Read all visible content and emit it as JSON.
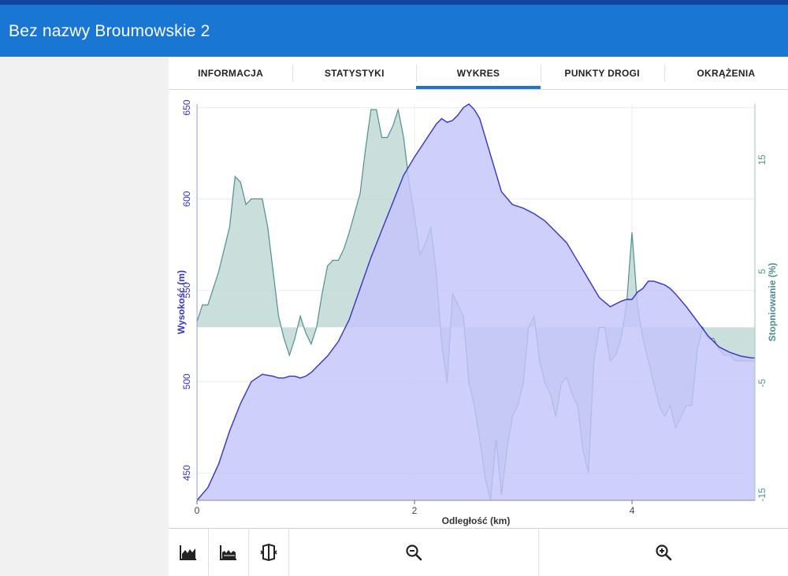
{
  "app": {
    "title": "Bez nazwy Broumowskie 2"
  },
  "tabs": [
    {
      "label": "INFORMACJA",
      "active": false
    },
    {
      "label": "STATYSTYKI",
      "active": false
    },
    {
      "label": "WYKRES",
      "active": true
    },
    {
      "label": "PUNKTY DROGI",
      "active": false
    },
    {
      "label": "OKRĄŻENIA",
      "active": false
    }
  ],
  "toolbar": {
    "icons": [
      "elevation-chart-icon",
      "gradient-chart-icon",
      "map-book-icon",
      "zoom-out-icon",
      "zoom-in-icon"
    ]
  },
  "colors": {
    "elevation": "#3333cc",
    "elevation_fill": "#c5c5fa",
    "grade": "#4f8f8f",
    "grade_fill": "#b8d4d0",
    "accent": "#1976d2"
  },
  "chart_data": {
    "type": "area",
    "xlabel": "Odległość (km)",
    "ylabel_left": "Wysokość (m)",
    "ylabel_right": "Stopniowanie (%)",
    "xlim": [
      0,
      5.13
    ],
    "ylim_left": [
      435,
      652
    ],
    "ylim_right": [
      -15.5,
      20
    ],
    "x_ticks": [
      0,
      2,
      4
    ],
    "y_ticks_left": [
      450,
      500,
      550,
      600,
      650
    ],
    "y_ticks_right": [
      -15,
      -5,
      5,
      15
    ],
    "grid": true,
    "series": [
      {
        "name": "Wysokość (m)",
        "axis": "left",
        "x": [
          0,
          0.1,
          0.2,
          0.3,
          0.4,
          0.5,
          0.6,
          0.7,
          0.75,
          0.8,
          0.85,
          0.9,
          0.95,
          1.0,
          1.05,
          1.1,
          1.15,
          1.2,
          1.3,
          1.4,
          1.5,
          1.6,
          1.7,
          1.8,
          1.9,
          2.0,
          2.1,
          2.2,
          2.25,
          2.3,
          2.35,
          2.4,
          2.45,
          2.5,
          2.55,
          2.6,
          2.7,
          2.8,
          2.9,
          3.0,
          3.1,
          3.2,
          3.3,
          3.4,
          3.5,
          3.6,
          3.7,
          3.8,
          3.9,
          3.95,
          4.0,
          4.05,
          4.1,
          4.15,
          4.2,
          4.25,
          4.3,
          4.35,
          4.4,
          4.5,
          4.6,
          4.7,
          4.8,
          4.9,
          5.0,
          5.1,
          5.13
        ],
        "values": [
          435,
          442,
          455,
          473,
          488,
          500,
          504,
          503,
          502,
          502,
          503,
          503,
          502,
          503,
          505,
          508,
          511,
          514,
          522,
          534,
          551,
          568,
          583,
          598,
          613,
          623,
          632,
          641,
          644,
          642,
          643,
          646,
          650,
          652,
          649,
          644,
          624,
          604,
          597,
          595,
          592,
          588,
          582,
          576,
          566,
          556,
          546,
          541,
          544,
          545,
          545,
          549,
          551,
          555,
          555,
          554,
          553,
          551,
          548,
          541,
          533,
          525,
          519,
          516,
          514,
          513,
          513
        ]
      },
      {
        "name": "Stopniowanie (%)",
        "axis": "right",
        "x": [
          0,
          0.05,
          0.1,
          0.2,
          0.3,
          0.35,
          0.4,
          0.45,
          0.5,
          0.55,
          0.6,
          0.65,
          0.7,
          0.75,
          0.8,
          0.85,
          0.9,
          0.95,
          1.0,
          1.05,
          1.1,
          1.15,
          1.2,
          1.25,
          1.3,
          1.35,
          1.4,
          1.5,
          1.55,
          1.6,
          1.65,
          1.7,
          1.75,
          1.8,
          1.85,
          1.9,
          1.95,
          2.0,
          2.05,
          2.1,
          2.15,
          2.2,
          2.25,
          2.3,
          2.35,
          2.4,
          2.45,
          2.5,
          2.55,
          2.6,
          2.65,
          2.7,
          2.75,
          2.8,
          2.85,
          2.9,
          2.95,
          3.0,
          3.05,
          3.1,
          3.15,
          3.2,
          3.25,
          3.3,
          3.35,
          3.4,
          3.45,
          3.5,
          3.55,
          3.6,
          3.65,
          3.7,
          3.75,
          3.8,
          3.85,
          3.9,
          3.95,
          4.0,
          4.05,
          4.1,
          4.15,
          4.2,
          4.25,
          4.3,
          4.35,
          4.4,
          4.45,
          4.5,
          4.55,
          4.6,
          4.65,
          4.7,
          4.75,
          4.8,
          4.85,
          4.9,
          4.95,
          5.0,
          5.05,
          5.1,
          5.13
        ],
        "values": [
          0.5,
          2,
          2,
          5,
          9,
          13.5,
          13,
          11,
          11.5,
          11.5,
          11.5,
          9,
          5,
          1,
          -1,
          -2.5,
          -1,
          1,
          -0.5,
          -1.5,
          0,
          3,
          5.5,
          6,
          6,
          7,
          8.5,
          12,
          16,
          19.5,
          19.5,
          17,
          17,
          18,
          19.5,
          17,
          13,
          10,
          6.5,
          7.5,
          9,
          5,
          -1.5,
          -5,
          3,
          2,
          1,
          -5,
          -7,
          -10,
          -13.5,
          -15.5,
          -10,
          -15,
          -11,
          -8,
          -7,
          -5,
          0,
          1,
          -3,
          -5,
          -6,
          -8,
          -5,
          -4.5,
          -6,
          -7,
          -11,
          -13,
          -3,
          0,
          0,
          -3,
          -2.5,
          -1,
          2,
          8.5,
          2,
          -1,
          -3,
          -5,
          -7,
          -8,
          -7,
          -9,
          -8,
          -7,
          -7,
          -2,
          0,
          -1,
          -1,
          -2,
          -2.5,
          -2.5,
          -3,
          -3,
          -3,
          -3,
          -3
        ]
      }
    ]
  }
}
